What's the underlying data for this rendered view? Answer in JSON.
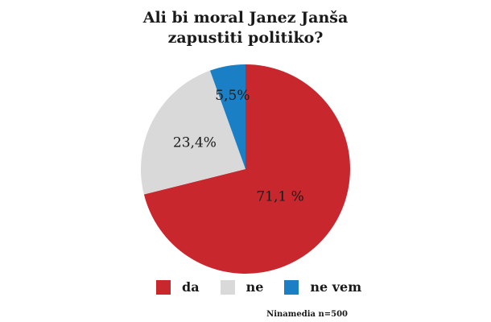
{
  "chart_data": {
    "type": "pie",
    "title_lines": [
      "Ali bi moral Janez Janša",
      "zapustiti politiko?"
    ],
    "slices": [
      {
        "name": "da",
        "value": 71.1,
        "label": "71,1 %",
        "color": "#c8272d"
      },
      {
        "name": "ne",
        "value": 23.4,
        "label": "23,4%",
        "color": "#d9d9d9"
      },
      {
        "name": "ne vem",
        "value": 5.5,
        "label": "5,5%",
        "color": "#1a7fc4"
      }
    ],
    "start": "12 o'clock",
    "direction": "clockwise",
    "legend_position": "bottom",
    "source": "Ninamedia n=500"
  }
}
